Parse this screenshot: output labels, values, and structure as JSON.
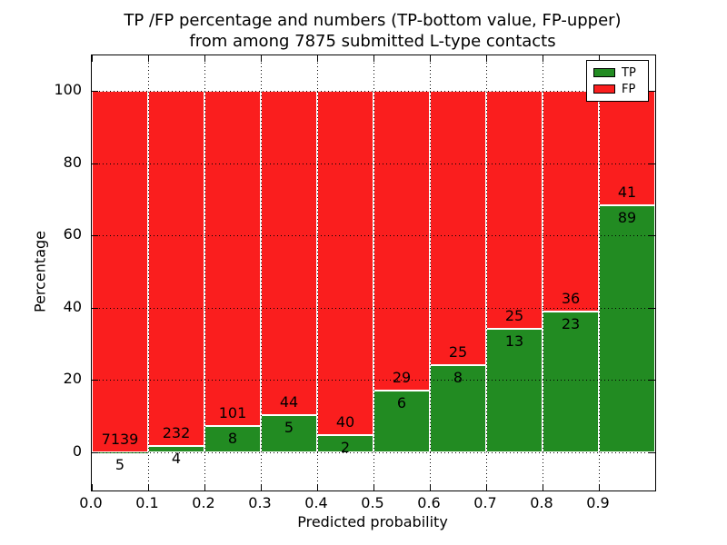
{
  "title": {
    "line1": "TP /FP percentage and numbers (TP-bottom value, FP-upper)",
    "line2": "from among 7875 submitted L-type contacts"
  },
  "axes": {
    "xlabel": "Predicted probability",
    "ylabel": "Percentage",
    "x_ticks": [
      "0.0",
      "0.1",
      "0.2",
      "0.3",
      "0.4",
      "0.5",
      "0.6",
      "0.7",
      "0.8",
      "0.9"
    ],
    "y_ticks": [
      "0",
      "20",
      "40",
      "60",
      "80",
      "100"
    ]
  },
  "legend": {
    "items": [
      {
        "label": "TP",
        "color": "#228b22"
      },
      {
        "label": "FP",
        "color": "#fa1e1e"
      }
    ]
  },
  "colors": {
    "tp_green": "#228b22",
    "fp_red": "#fa1e1e",
    "text": "#000000",
    "background": "#ffffff"
  },
  "chart_data": {
    "type": "bar",
    "stacked": true,
    "normalized_to_percent": true,
    "title": "TP /FP percentage and numbers (TP-bottom value, FP-upper) from among 7875 submitted L-type contacts",
    "xlabel": "Predicted probability",
    "ylabel": "Percentage",
    "total_contacts": 7875,
    "bin_start": [
      0.0,
      0.1,
      0.2,
      0.3,
      0.4,
      0.5,
      0.6,
      0.7,
      0.8,
      0.9
    ],
    "bin_width": 0.1,
    "series": [
      {
        "name": "TP",
        "color": "#228b22",
        "counts": [
          5,
          4,
          8,
          5,
          2,
          6,
          8,
          13,
          23,
          89
        ]
      },
      {
        "name": "FP",
        "color": "#fa1e1e",
        "counts": [
          7139,
          232,
          101,
          44,
          40,
          29,
          25,
          25,
          36,
          41
        ]
      }
    ],
    "tp_percent_of_bin": [
      0.07,
      1.69,
      7.34,
      10.2,
      4.76,
      17.14,
      24.24,
      34.21,
      38.98,
      68.46
    ],
    "y_tick_values": [
      0,
      20,
      40,
      60,
      80,
      100
    ],
    "ylim_percent": [
      0,
      100
    ],
    "grid": "dotted",
    "legend_position": "upper right"
  }
}
